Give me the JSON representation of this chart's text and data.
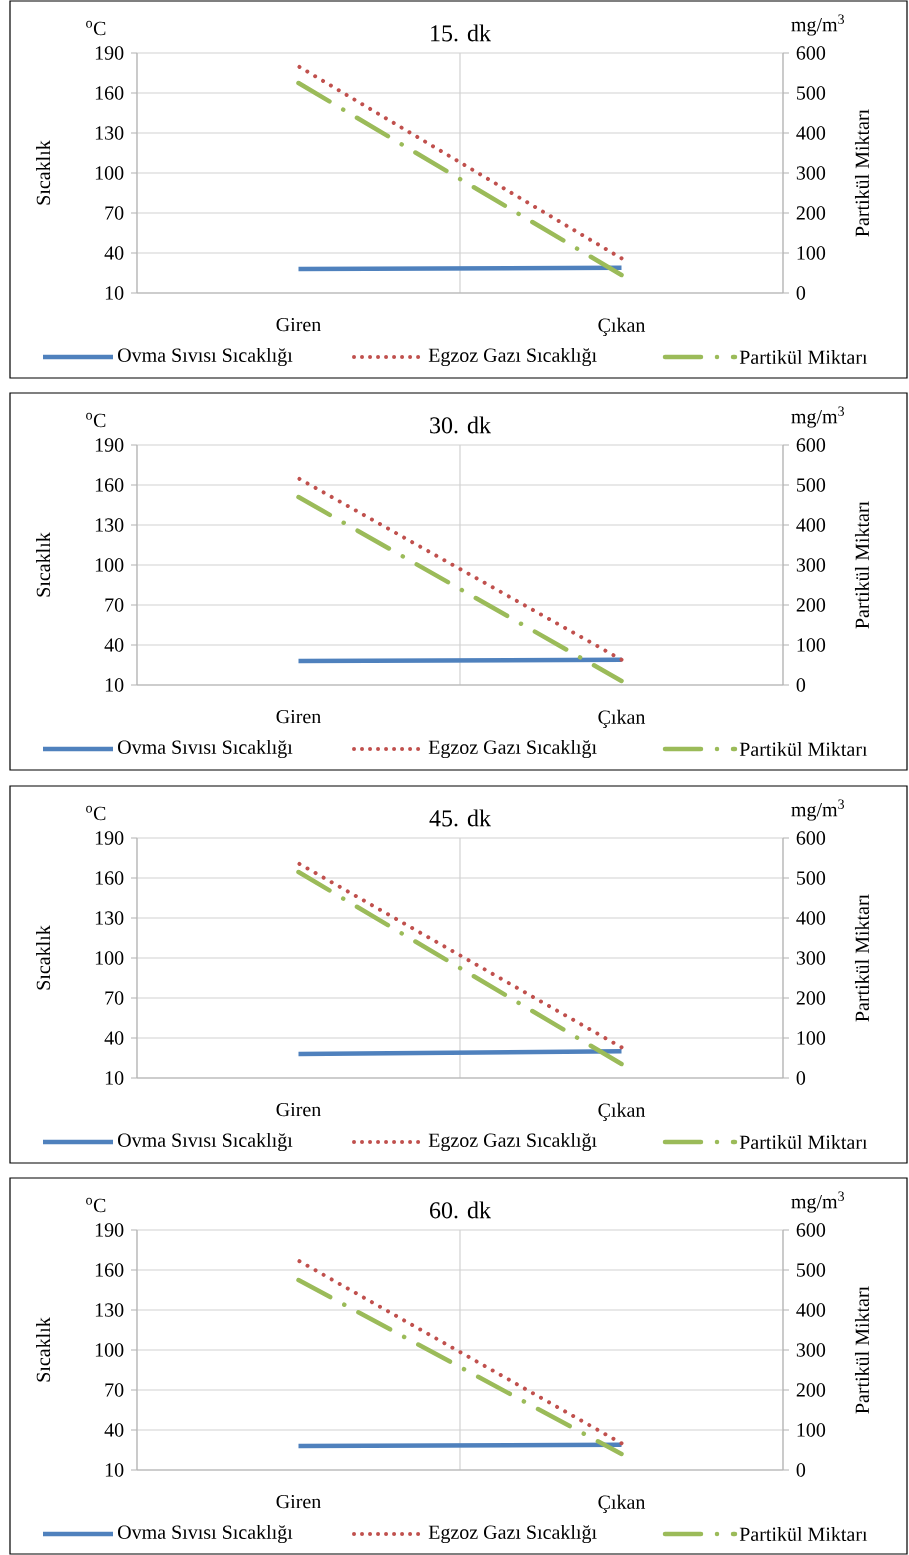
{
  "chart_data": [
    {
      "type": "line",
      "title": "15. dk",
      "categories": [
        "Giren",
        "Çıkan"
      ],
      "ylabel": "Sıcaklık",
      "y2label": "Partikül Miktarı",
      "annotations": [
        "$^{o}$C",
        "mg/m$^{3}$"
      ],
      "ylim": [
        10,
        190
      ],
      "yticks": [
        10,
        40,
        70,
        100,
        130,
        160,
        190
      ],
      "y2lim": [
        0,
        600
      ],
      "y2ticks": [
        0,
        100,
        200,
        300,
        400,
        500,
        600
      ],
      "grid": true,
      "legend": "bottom",
      "series": [
        {
          "name": "Ovma Sıvısı Sıcaklığı",
          "color": "#4f81bd",
          "line_style": "solid",
          "values": [
            28,
            29
          ]
        },
        {
          "name": "Egzoz Gazı Sıcaklığı",
          "color": "#c0504d",
          "line_style": "dotted",
          "values": [
            180,
            36
          ]
        },
        {
          "name": "Partikül Miktarı",
          "color": "#9bbb59",
          "line_style": "dashed",
          "axis": "y2",
          "values": [
            525,
            45
          ]
        }
      ]
    },
    {
      "type": "line",
      "title": "30. dk",
      "categories": [
        "Giren",
        "Çıkan"
      ],
      "ylabel": "Sıcaklık",
      "y2label": "Partikül Miktarı",
      "annotations": [
        "$^{o}$C",
        "mg/m$^{3}$"
      ],
      "ylim": [
        10,
        190
      ],
      "yticks": [
        10,
        40,
        70,
        100,
        130,
        160,
        190
      ],
      "y2lim": [
        0,
        600
      ],
      "y2ticks": [
        0,
        100,
        200,
        300,
        400,
        500,
        600
      ],
      "grid": true,
      "legend": "bottom",
      "series": [
        {
          "name": "Ovma Sıvısı Sıcaklığı",
          "color": "#4f81bd",
          "line_style": "solid",
          "values": [
            28,
            29
          ]
        },
        {
          "name": "Egzoz Gazı Sıcaklığı",
          "color": "#c0504d",
          "line_style": "dotted",
          "values": [
            165,
            29
          ]
        },
        {
          "name": "Partikül Miktarı",
          "color": "#9bbb59",
          "line_style": "dashed",
          "axis": "y2",
          "values": [
            470,
            10
          ]
        }
      ]
    },
    {
      "type": "line",
      "title": "45. dk",
      "categories": [
        "Giren",
        "Çıkan"
      ],
      "ylabel": "Sıcaklık",
      "y2label": "Partikül Miktarı",
      "annotations": [
        "$^{o}$C",
        "mg/m$^{3}$"
      ],
      "ylim": [
        10,
        190
      ],
      "yticks": [
        10,
        40,
        70,
        100,
        130,
        160,
        190
      ],
      "y2lim": [
        0,
        600
      ],
      "y2ticks": [
        0,
        100,
        200,
        300,
        400,
        500,
        600
      ],
      "grid": true,
      "legend": "bottom",
      "series": [
        {
          "name": "Ovma Sıvısı Sıcaklığı",
          "color": "#4f81bd",
          "line_style": "solid",
          "values": [
            28,
            30
          ]
        },
        {
          "name": "Egzoz Gazı Sıcaklığı",
          "color": "#c0504d",
          "line_style": "dotted",
          "values": [
            171,
            33
          ]
        },
        {
          "name": "Partikül Miktarı",
          "color": "#9bbb59",
          "line_style": "dashed",
          "axis": "y2",
          "values": [
            515,
            35
          ]
        }
      ]
    },
    {
      "type": "line",
      "title": "60. dk",
      "categories": [
        "Giren",
        "Çıkan"
      ],
      "ylabel": "Sıcaklık",
      "y2label": "Partikül Miktarı",
      "annotations": [
        "$^{o}$C",
        "mg/m$^{3}$"
      ],
      "ylim": [
        10,
        190
      ],
      "yticks": [
        10,
        40,
        70,
        100,
        130,
        160,
        190
      ],
      "y2lim": [
        0,
        600
      ],
      "y2ticks": [
        0,
        100,
        200,
        300,
        400,
        500,
        600
      ],
      "grid": true,
      "legend": "bottom",
      "series": [
        {
          "name": "Ovma Sıvısı Sıcaklığı",
          "color": "#4f81bd",
          "line_style": "solid",
          "values": [
            28,
            29
          ]
        },
        {
          "name": "Egzoz Gazı Sıcaklığı",
          "color": "#c0504d",
          "line_style": "dotted",
          "values": [
            167,
            30
          ]
        },
        {
          "name": "Partikül Miktarı",
          "color": "#9bbb59",
          "line_style": "dashed",
          "axis": "y2",
          "values": [
            475,
            40
          ]
        }
      ]
    }
  ]
}
